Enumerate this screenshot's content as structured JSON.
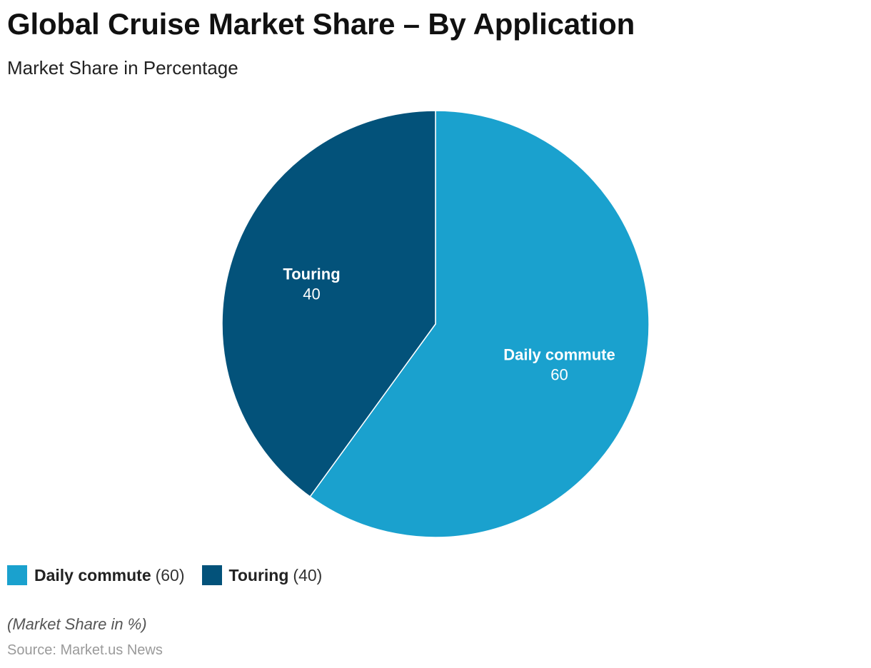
{
  "chart_data": {
    "type": "pie",
    "title": "Global Cruise Market Share – By Application",
    "subtitle": "Market Share in Percentage",
    "slices": [
      {
        "label": "Daily commute",
        "value": 60,
        "value_text": "60",
        "color": "#1aa1ce"
      },
      {
        "label": "Touring",
        "value": 40,
        "value_text": "40",
        "color": "#03527a"
      }
    ],
    "legend_placement": "bottom-left",
    "note": "(Market Share in %)",
    "source": "Source: Market.us News"
  },
  "legend": {
    "items": [
      {
        "label": "Daily commute",
        "value_text": "(60)",
        "color": "#1aa1ce"
      },
      {
        "label": "Touring",
        "value_text": "(40)",
        "color": "#03527a"
      }
    ]
  }
}
